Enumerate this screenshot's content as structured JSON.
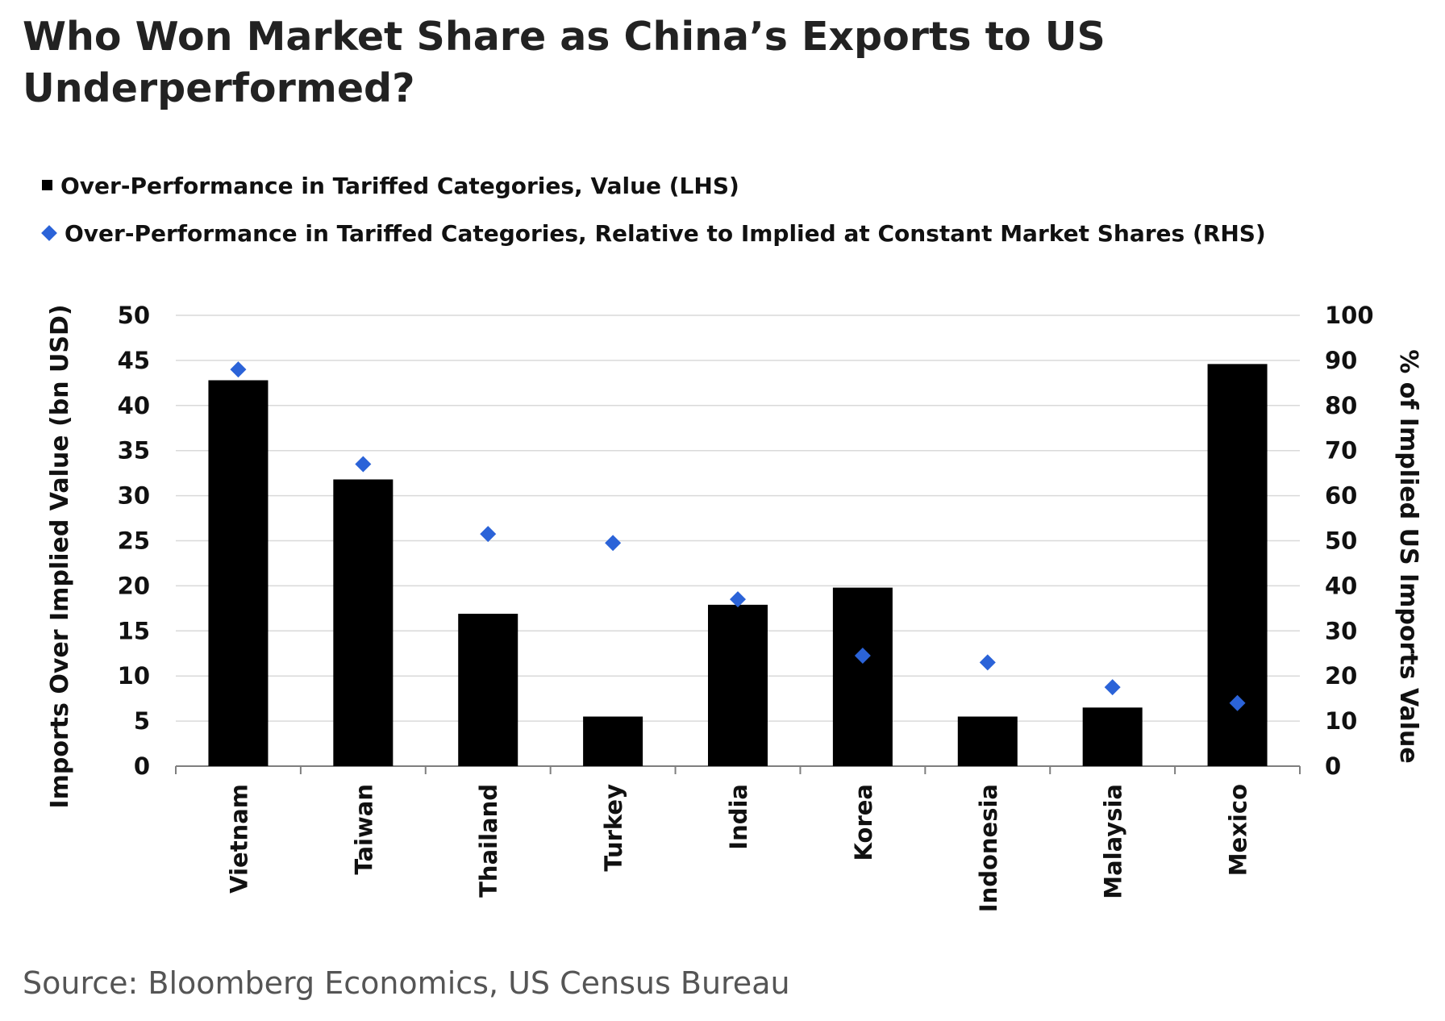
{
  "title": "Who Won Market Share as China’s Exports to US Underperformed?",
  "source": "Source: Bloomberg Economics, US Census Bureau",
  "colors": {
    "bar": "#000000",
    "marker": "#2b63d8",
    "grid": "#d9d9d9",
    "axis": "#7f7f7f"
  },
  "chart_data": {
    "type": "bar",
    "categories": [
      "Vietnam",
      "Taiwan",
      "Thailand",
      "Turkey",
      "India",
      "Korea",
      "Indonesia",
      "Malaysia",
      "Mexico"
    ],
    "series": [
      {
        "name": "Over-Performance in Tariffed Categories, Value (LHS)",
        "type": "bar",
        "axis": "left",
        "values": [
          42.8,
          31.8,
          16.9,
          5.5,
          17.9,
          19.8,
          5.5,
          6.5,
          44.6
        ]
      },
      {
        "name": "Over-Performance in Tariffed Categories, Relative to Implied at Constant Market Shares (RHS)",
        "type": "scatter",
        "marker": "diamond",
        "axis": "right",
        "values": [
          88,
          67,
          51.5,
          49.5,
          37,
          24.5,
          23,
          17.5,
          14
        ]
      }
    ],
    "ylabel": "Imports Over Implied Value (bn USD)",
    "y2label": "% of Implied US Imports Value",
    "ylim": [
      0,
      50
    ],
    "y2lim": [
      0,
      100
    ],
    "yticks": [
      0,
      5,
      10,
      15,
      20,
      25,
      30,
      35,
      40,
      45,
      50
    ],
    "y2ticks": [
      0,
      10,
      20,
      30,
      40,
      50,
      60,
      70,
      80,
      90,
      100
    ],
    "grid": true,
    "legend_position": "top-left"
  }
}
